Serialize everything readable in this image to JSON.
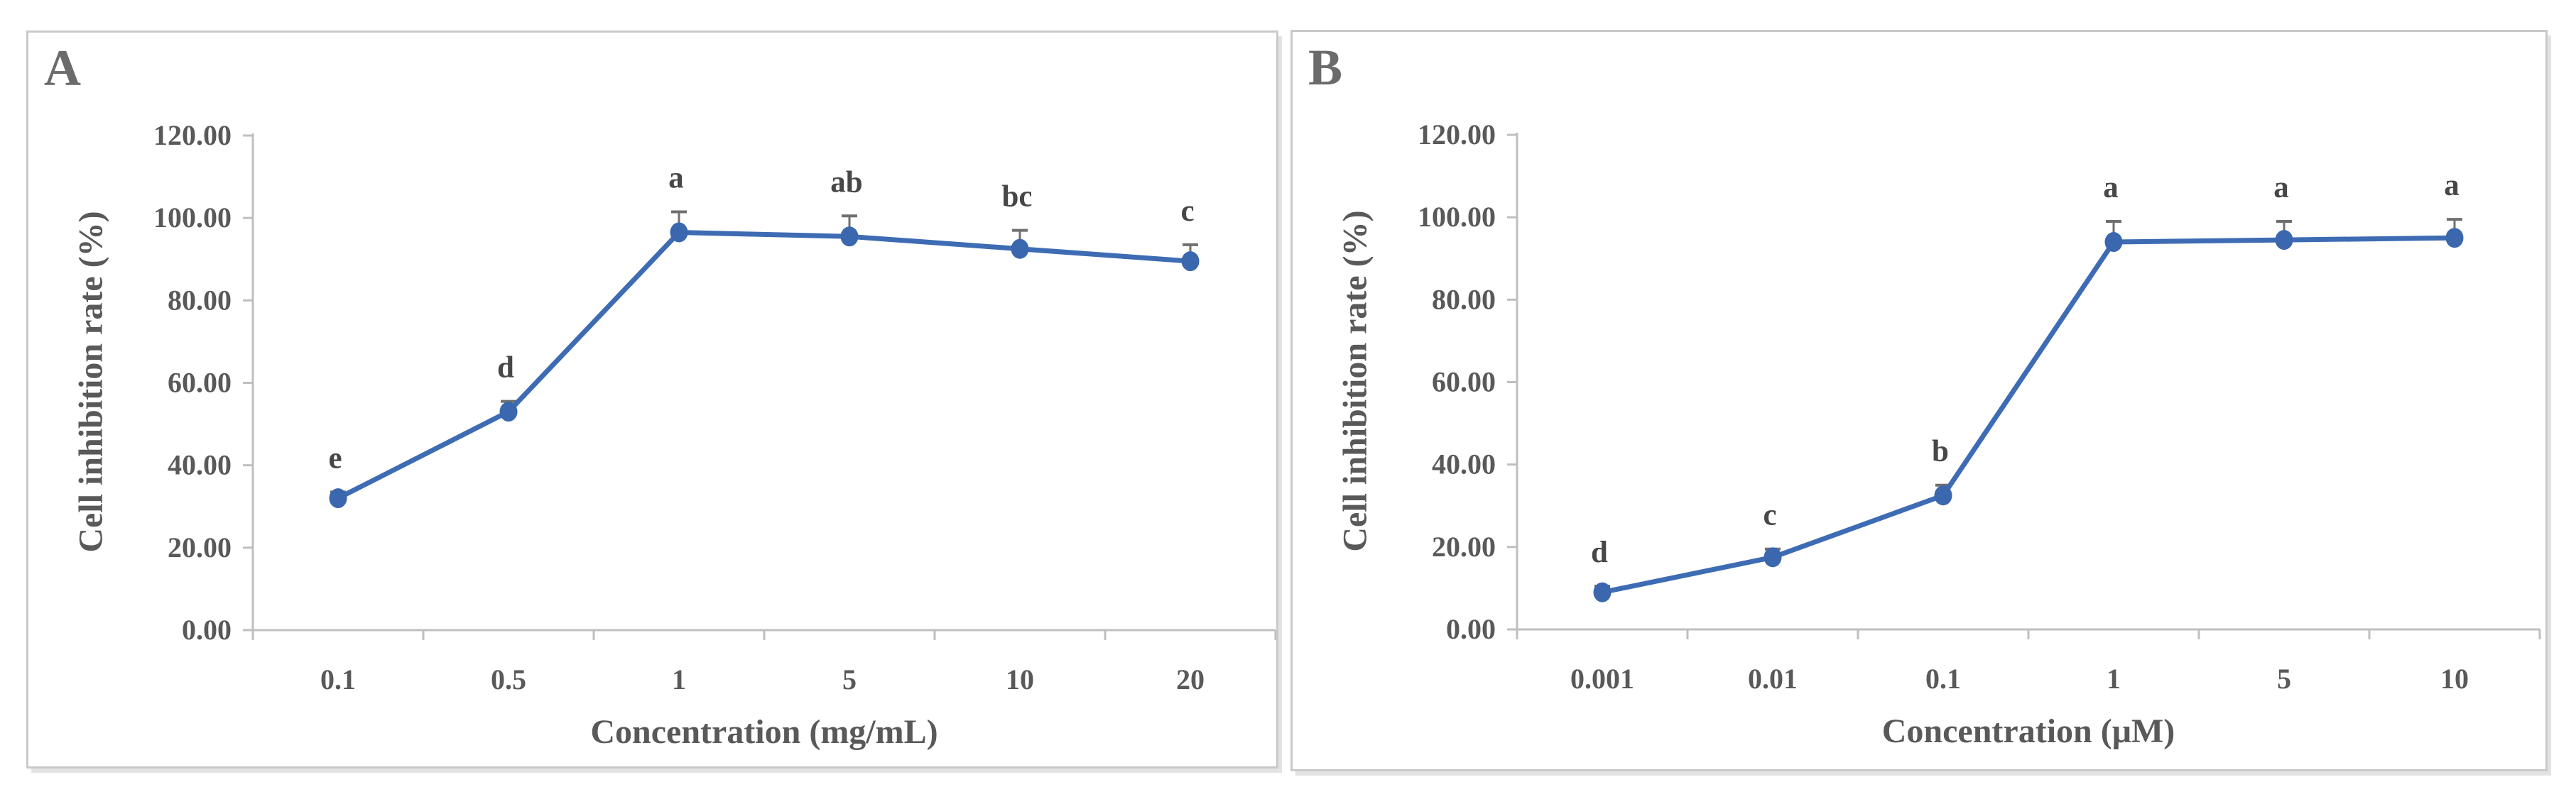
{
  "colors": {
    "line": "#3E6CB4",
    "marker": "#3A67AE",
    "axis": "#BFBFBF",
    "tick_text": "#595959",
    "error_bar": "#6F6F6F",
    "sig_letter_text": "#474747",
    "panel_border": "#C9C9C9"
  },
  "chart_data": [
    {
      "type": "line",
      "panel_label": "A",
      "xlabel": "Concentration (mg/mL)",
      "ylabel": "Cell inhibition rate (%)",
      "categories": [
        "0.1",
        "0.5",
        "1",
        "5",
        "10",
        "20"
      ],
      "series": [
        {
          "values": [
            32,
            53,
            96.5,
            95.5,
            92.5,
            89.5
          ],
          "upper_errors": [
            1.5,
            2.5,
            5,
            5,
            4.5,
            4
          ],
          "point_labels": [
            "e",
            "d",
            "a",
            "ab",
            "bc",
            "c"
          ]
        }
      ],
      "ytick_labels": [
        "0.00",
        "20.00",
        "40.00",
        "60.00",
        "80.00",
        "100.00",
        "120.00"
      ],
      "ytick_values": [
        0,
        20,
        40,
        60,
        80,
        100,
        120
      ],
      "ylim": [
        0,
        120
      ],
      "grid": false,
      "legend": "none"
    },
    {
      "type": "line",
      "panel_label": "B",
      "xlabel": "Concentration (μM)",
      "ylabel": "Cell inhibition rate (%)",
      "categories": [
        "0.001",
        "0.01",
        "0.1",
        "1",
        "5",
        "10"
      ],
      "series": [
        {
          "values": [
            9,
            17.5,
            32.5,
            94,
            94.5,
            95
          ],
          "upper_errors": [
            1.5,
            2,
            2.5,
            5,
            4.5,
            4.5
          ],
          "point_labels": [
            "d",
            "c",
            "b",
            "a",
            "a",
            "a"
          ]
        }
      ],
      "ytick_labels": [
        "0.00",
        "20.00",
        "40.00",
        "60.00",
        "80.00",
        "100.00",
        "120.00"
      ],
      "ytick_values": [
        0,
        20,
        40,
        60,
        80,
        100,
        120
      ],
      "ylim": [
        0,
        120
      ],
      "grid": false,
      "legend": "none"
    }
  ]
}
